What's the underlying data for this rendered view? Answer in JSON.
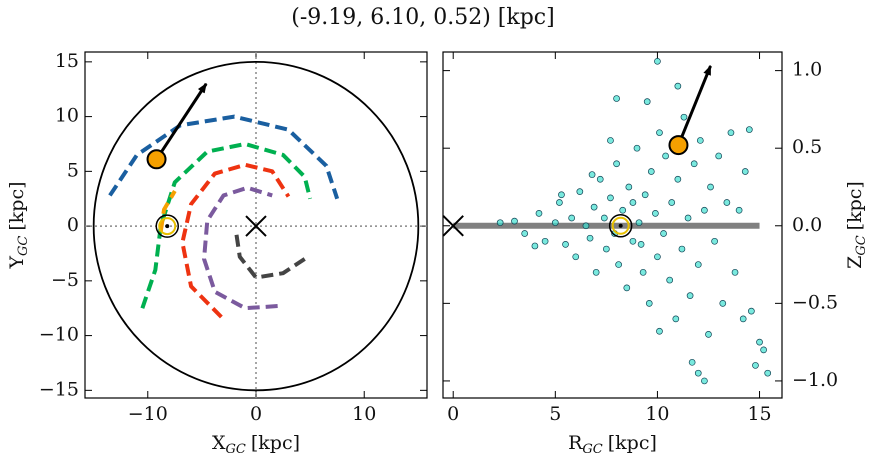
{
  "title": "(-9.19, 6.10, 0.52) [kpc]",
  "chart_data": [
    {
      "type": "line",
      "xlabel": {
        "main": "X",
        "sub": "GC",
        "unit": "[kpc]"
      },
      "ylabel": {
        "main": "Y",
        "sub": "GC",
        "unit": "[kpc]"
      },
      "xlim": [
        -15.8,
        15.8
      ],
      "ylim": [
        -15.7,
        15.9
      ],
      "xticks": [
        {
          "value": -10,
          "label": "−10"
        },
        0,
        10
      ],
      "yticks": [
        {
          "value": -15,
          "label": "−15"
        },
        {
          "value": -10,
          "label": "−10"
        },
        {
          "value": -5,
          "label": "−5"
        },
        0,
        5,
        10,
        15
      ],
      "circle": {
        "x": 0,
        "y": 0,
        "r": 15,
        "color": "#000000"
      },
      "series": [
        {
          "color": "#1a5fa0",
          "x": [
            -13.5,
            -11,
            -7,
            -2,
            3,
            6.5,
            7.5
          ],
          "y": [
            2.8,
            6.5,
            9.2,
            10,
            8.8,
            5.5,
            2.5
          ]
        },
        {
          "color": "#00b050",
          "x": [
            -10.5,
            -9.3,
            -8.8,
            -7.5,
            -4.5,
            -1,
            2.5,
            4.5,
            5
          ],
          "y": [
            -7.5,
            -4,
            0,
            4,
            6.8,
            7.5,
            6.5,
            4.5,
            2.5
          ]
        },
        {
          "color": "#f5a000",
          "x": [
            -8.8,
            -8.5,
            -7.5
          ],
          "y": [
            -0.5,
            1.5,
            3.2
          ]
        },
        {
          "color": "#ee3311",
          "x": [
            -3.2,
            -6,
            -6.8,
            -6,
            -3.8,
            -1,
            1.5,
            3
          ],
          "y": [
            -8.3,
            -5.5,
            -1.5,
            2,
            4.8,
            5.6,
            5,
            2.7
          ]
        },
        {
          "color": "#7b5a9e",
          "x": [
            2,
            -1,
            -3.8,
            -4.8,
            -4.5,
            -3,
            -0.8,
            1.5
          ],
          "y": [
            -7.3,
            -7.5,
            -6,
            -3,
            0.5,
            2.8,
            3.5,
            2.8
          ]
        },
        {
          "color": "#444444",
          "x": [
            -1.8,
            -1.5,
            0,
            2.5,
            4.5
          ],
          "y": [
            -0.8,
            -2.8,
            -4.7,
            -4.3,
            -3
          ]
        }
      ],
      "point": {
        "x": -9.19,
        "y": 6.1,
        "color": "#f5a000"
      },
      "arrow": {
        "x": [
          -9.19,
          -4.6
        ],
        "y": [
          6.1,
          13.0
        ]
      },
      "sun": {
        "x": -8.2,
        "y": 0
      },
      "center": {
        "x": 0,
        "y": 0
      }
    },
    {
      "type": "scatter",
      "xlabel": {
        "main": "R",
        "sub": "GC",
        "unit": "[kpc]"
      },
      "ylabel": {
        "main": "Z",
        "sub": "GC",
        "unit": "[kpc]"
      },
      "xlim": [
        -0.5,
        16.1
      ],
      "y2lim": [
        -1.11,
        1.12
      ],
      "xticks": [
        0,
        5,
        10,
        15
      ],
      "y2ticks": [
        {
          "value": -1.0,
          "label": "−1.0"
        },
        {
          "value": -0.5,
          "label": "−0.5"
        },
        {
          "value": 0.0,
          "label": "0.0"
        },
        {
          "value": 0.5,
          "label": "0.5"
        },
        {
          "value": 1.0,
          "label": "1.0"
        }
      ],
      "color": "#40e0d0",
      "x": [
        3.0,
        3.5,
        4.2,
        4.5,
        5.0,
        5.2,
        5.5,
        5.8,
        6.0,
        6.2,
        6.5,
        6.7,
        6.9,
        7.0,
        7.2,
        7.4,
        7.5,
        7.7,
        7.9,
        8.0,
        8.1,
        8.3,
        8.5,
        8.6,
        8.8,
        9.0,
        9.1,
        9.3,
        9.4,
        9.6,
        9.7,
        9.9,
        10.0,
        10.1,
        10.3,
        10.4,
        10.6,
        10.7,
        10.9,
        11.0,
        11.2,
        11.3,
        11.5,
        11.6,
        11.8,
        12.0,
        12.1,
        12.3,
        12.5,
        12.6,
        12.8,
        13.0,
        13.2,
        13.4,
        13.6,
        13.8,
        14.0,
        14.2,
        14.3,
        14.5,
        14.6,
        15.0,
        15.2,
        15.4,
        14.8,
        12.3,
        12.0,
        11.7,
        10.1,
        10.0,
        8.0,
        9.5,
        11.0,
        7.7,
        6.8,
        5.3,
        4.0,
        2.3,
        8.8,
        9.2
      ],
      "y": [
        0.03,
        -0.05,
        0.08,
        -0.1,
        0.02,
        0.15,
        -0.12,
        0.05,
        -0.2,
        0.22,
        0.0,
        -0.08,
        0.12,
        -0.3,
        0.3,
        0.05,
        -0.15,
        0.18,
        -0.05,
        0.4,
        -0.25,
        0.1,
        -0.4,
        0.25,
        -0.1,
        0.5,
        0.02,
        -0.3,
        0.2,
        -0.5,
        0.35,
        0.08,
        -0.2,
        0.6,
        -0.05,
        0.45,
        -0.35,
        0.15,
        -0.6,
        0.3,
        -0.15,
        0.7,
        0.05,
        -0.45,
        0.4,
        -0.25,
        0.55,
        0.1,
        -0.7,
        0.25,
        -0.1,
        0.45,
        -0.5,
        0.15,
        0.6,
        -0.3,
        0.1,
        -0.6,
        0.35,
        0.62,
        -0.55,
        -0.75,
        -0.8,
        -0.95,
        -0.9,
        -1.0,
        -0.95,
        -0.88,
        -0.68,
        1.06,
        0.82,
        0.8,
        0.9,
        0.55,
        0.33,
        0.2,
        -0.13,
        0.02,
        0.15,
        -0.12
      ],
      "disk": {
        "x": [
          0,
          15
        ],
        "y": [
          0,
          0
        ],
        "color": "#808080"
      },
      "point": {
        "x": 11.03,
        "y": 0.52,
        "color": "#f5a000"
      },
      "arrow": {
        "x": [
          11.03,
          12.6
        ],
        "y": [
          0.52,
          1.03
        ]
      },
      "sun": {
        "x": 8.2,
        "y": 0
      },
      "center": {
        "x": 0,
        "y": 0
      }
    }
  ]
}
